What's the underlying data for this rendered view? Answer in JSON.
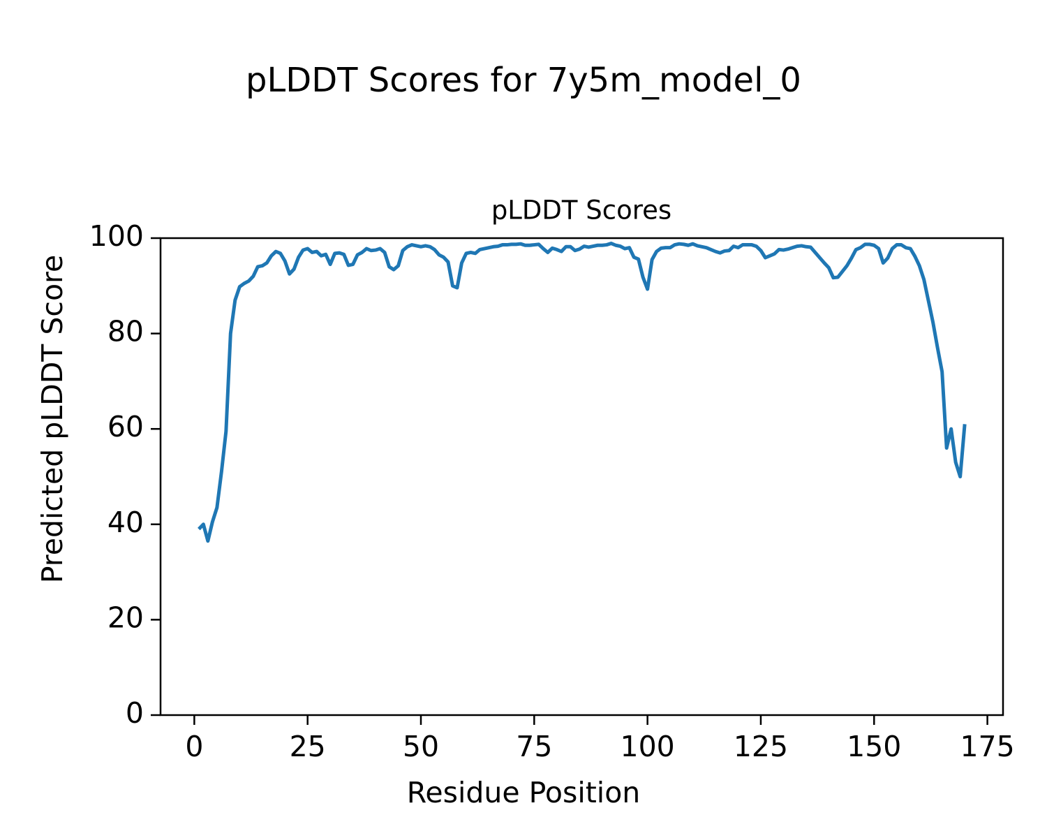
{
  "chart_data": {
    "type": "line",
    "title": "pLDDT Scores for 7y5m_model_0",
    "subtitle": "pLDDT Scores",
    "x_label": "Residue Position",
    "y_label": "Predicted pLDDT Score",
    "x": [
      1,
      2,
      3,
      4,
      5,
      6,
      7,
      8,
      9,
      10,
      11,
      12,
      13,
      14,
      15,
      16,
      17,
      18,
      19,
      20,
      21,
      22,
      23,
      24,
      25,
      26,
      27,
      28,
      29,
      30,
      31,
      32,
      33,
      34,
      35,
      36,
      37,
      38,
      39,
      40,
      41,
      42,
      43,
      44,
      45,
      46,
      47,
      48,
      49,
      50,
      51,
      52,
      53,
      54,
      55,
      56,
      57,
      58,
      59,
      60,
      61,
      62,
      63,
      64,
      65,
      66,
      67,
      68,
      69,
      70,
      71,
      72,
      73,
      74,
      75,
      76,
      77,
      78,
      79,
      80,
      81,
      82,
      83,
      84,
      85,
      86,
      87,
      88,
      89,
      90,
      91,
      92,
      93,
      94,
      95,
      96,
      97,
      98,
      99,
      100,
      101,
      102,
      103,
      104,
      105,
      106,
      107,
      108,
      109,
      110,
      111,
      112,
      113,
      114,
      115,
      116,
      117,
      118,
      119,
      120,
      121,
      122,
      123,
      124,
      125,
      126,
      127,
      128,
      129,
      130,
      131,
      132,
      133,
      134,
      135,
      136,
      137,
      138,
      139,
      140,
      141,
      142,
      143,
      144,
      145,
      146,
      147,
      148,
      149,
      150,
      151,
      152,
      153,
      154,
      155,
      156,
      157,
      158,
      159,
      160,
      161,
      162,
      163,
      164,
      165,
      166,
      167,
      168,
      169,
      170
    ],
    "series": [
      {
        "name": "pLDDT",
        "color": "#1f77b4",
        "values": [
          39,
          40,
          36.5,
          40.5,
          43.5,
          51,
          59.5,
          80,
          87,
          89.8,
          90.5,
          91,
          92,
          94,
          94.2,
          94.8,
          96.3,
          97.2,
          96.8,
          95.2,
          92.5,
          93.5,
          96,
          97.5,
          97.8,
          97,
          97.2,
          96.3,
          96.6,
          94.5,
          96.8,
          96.9,
          96.6,
          94.3,
          94.5,
          96.5,
          97,
          97.8,
          97.4,
          97.5,
          97.8,
          97,
          94,
          93.4,
          94.2,
          97.4,
          98.2,
          98.6,
          98.4,
          98.2,
          98.4,
          98.2,
          97.6,
          96.5,
          96,
          95,
          90,
          89.6,
          94.8,
          96.8,
          97,
          96.8,
          97.6,
          97.8,
          98,
          98.2,
          98.3,
          98.6,
          98.6,
          98.7,
          98.7,
          98.8,
          98.5,
          98.5,
          98.6,
          98.7,
          97.8,
          97,
          97.9,
          97.6,
          97.2,
          98.2,
          98.2,
          97.4,
          97.7,
          98.3,
          98.1,
          98.3,
          98.5,
          98.5,
          98.6,
          98.9,
          98.5,
          98.3,
          97.8,
          98,
          96,
          95.6,
          91.8,
          89.3,
          95.5,
          97.2,
          97.9,
          98,
          98,
          98.6,
          98.8,
          98.7,
          98.5,
          98.8,
          98.4,
          98.2,
          98,
          97.6,
          97.2,
          96.9,
          97.3,
          97.4,
          98.3,
          98,
          98.6,
          98.6,
          98.6,
          98.3,
          97.4,
          95.9,
          96.3,
          96.7,
          97.6,
          97.5,
          97.7,
          98,
          98.3,
          98.4,
          98.2,
          98.1,
          97,
          95.9,
          94.8,
          93.8,
          91.7,
          91.8,
          93,
          94.2,
          95.8,
          97.6,
          98,
          98.7,
          98.7,
          98.5,
          97.8,
          94.8,
          95.8,
          97.8,
          98.6,
          98.6,
          98,
          97.8,
          96.2,
          94.2,
          91.3,
          86.8,
          82.3,
          77,
          72,
          56,
          60,
          53,
          50,
          61
        ]
      }
    ],
    "xlim": [
      -7.45,
      178.45
    ],
    "xticks": [
      0,
      25,
      50,
      75,
      100,
      125,
      150,
      175
    ],
    "ylim": [
      0,
      100
    ],
    "yticks": [
      0,
      20,
      40,
      60,
      80,
      100
    ]
  }
}
